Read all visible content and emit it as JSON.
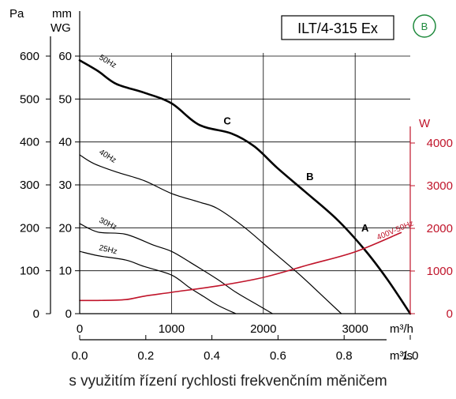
{
  "caption": "s využitím řízení rychlosti frekvenčním měničem",
  "chart_data": {
    "type": "line",
    "title": "ILT/4-315 Ex",
    "badge": "B",
    "colors": {
      "curves": "#000000",
      "power": "#c0142a",
      "badge": "#1f8a3d"
    },
    "grid": true,
    "xaxis_flow_h": {
      "unit": "m³/h",
      "range": [
        0,
        3600
      ],
      "ticks": [
        0,
        1000,
        2000,
        3000
      ],
      "tick_labels": [
        "0",
        "1000",
        "2000",
        "3000"
      ]
    },
    "xaxis_flow_s": {
      "unit": "m³/s",
      "range": [
        0,
        1.0
      ],
      "ticks": [
        0,
        0.2,
        0.4,
        0.6,
        0.8,
        1.0
      ],
      "tick_labels": [
        "0.0",
        "0.2",
        "0.4",
        "0.6",
        "0.8",
        "1.0"
      ]
    },
    "yaxis_pa": {
      "unit": "Pa",
      "range": [
        0,
        600
      ],
      "ticks": [
        0,
        100,
        200,
        300,
        400,
        500,
        600
      ],
      "tick_labels": [
        "0",
        "100",
        "200",
        "300",
        "400",
        "500",
        "600"
      ]
    },
    "yaxis_mmwg": {
      "unit_line1": "mm",
      "unit_line2": "WG",
      "ticks": [
        0,
        10,
        20,
        30,
        40,
        50,
        60
      ],
      "tick_labels": [
        "0",
        "10",
        "20",
        "30",
        "40",
        "50",
        "60"
      ]
    },
    "yaxis_w": {
      "unit": "W",
      "range": [
        0,
        4000
      ],
      "ticks": [
        0,
        1000,
        2000,
        3000,
        4000
      ],
      "tick_labels": [
        "0",
        "1000",
        "2000",
        "3000",
        "4000"
      ]
    },
    "series": [
      {
        "name": "50Hz",
        "axis": "pa",
        "width": 2.6,
        "x": [
          0,
          200,
          400,
          700,
          1000,
          1300,
          1650,
          1900,
          2150,
          2450,
          2800,
          3100,
          3350,
          3600
        ],
        "y": [
          590,
          565,
          535,
          515,
          490,
          440,
          420,
          390,
          340,
          285,
          220,
          150,
          80,
          0
        ]
      },
      {
        "name": "40Hz",
        "axis": "pa",
        "width": 1.2,
        "x": [
          0,
          150,
          400,
          700,
          1000,
          1300,
          1500,
          1800,
          2100,
          2400,
          2700,
          2850
        ],
        "y": [
          370,
          350,
          330,
          310,
          280,
          260,
          245,
          200,
          145,
          90,
          30,
          0
        ]
      },
      {
        "name": "30Hz",
        "axis": "pa",
        "width": 1.2,
        "x": [
          0,
          200,
          500,
          800,
          1000,
          1200,
          1500,
          1700,
          1900,
          2100
        ],
        "y": [
          210,
          190,
          185,
          160,
          145,
          120,
          80,
          50,
          25,
          0
        ]
      },
      {
        "name": "25Hz",
        "axis": "pa",
        "width": 1.2,
        "x": [
          0,
          200,
          500,
          700,
          1000,
          1200,
          1350,
          1500,
          1700
        ],
        "y": [
          145,
          135,
          125,
          110,
          90,
          60,
          40,
          20,
          0
        ]
      },
      {
        "name": "400V-50Hz",
        "axis": "w",
        "width": 1.6,
        "x": [
          0,
          200,
          500,
          700,
          1000,
          1500,
          2000,
          2500,
          3000,
          3500
        ],
        "y": [
          310,
          310,
          330,
          410,
          500,
          650,
          850,
          1150,
          1450,
          1900
        ]
      }
    ],
    "points": [
      {
        "label": "A",
        "x": 3050,
        "y": 180
      },
      {
        "label": "B",
        "x": 2450,
        "y": 300
      },
      {
        "label": "C",
        "x": 1550,
        "y": 430
      }
    ]
  }
}
